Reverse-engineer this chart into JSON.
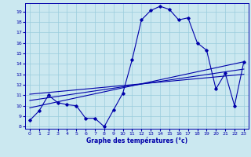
{
  "title": "",
  "xlabel": "Graphe des températures (°c)",
  "ylabel": "",
  "bg_color": "#cbe8f0",
  "line_color": "#0000aa",
  "grid_color": "#99ccdd",
  "xlim": [
    -0.5,
    23.5
  ],
  "ylim": [
    7.8,
    19.8
  ],
  "xticks": [
    0,
    1,
    2,
    3,
    4,
    5,
    6,
    7,
    8,
    9,
    10,
    11,
    12,
    13,
    14,
    15,
    16,
    17,
    18,
    19,
    20,
    21,
    22,
    23
  ],
  "yticks": [
    8,
    9,
    10,
    11,
    12,
    13,
    14,
    15,
    16,
    17,
    18,
    19
  ],
  "temps": [
    [
      0,
      8.6
    ],
    [
      1,
      9.5
    ],
    [
      2,
      11.0
    ],
    [
      3,
      10.3
    ],
    [
      4,
      10.1
    ],
    [
      5,
      10.0
    ],
    [
      6,
      8.8
    ],
    [
      7,
      8.8
    ],
    [
      8,
      8.0
    ],
    [
      9,
      9.6
    ],
    [
      10,
      11.2
    ],
    [
      11,
      14.4
    ],
    [
      12,
      18.2
    ],
    [
      13,
      19.1
    ],
    [
      14,
      19.5
    ],
    [
      15,
      19.2
    ],
    [
      16,
      18.2
    ],
    [
      17,
      18.4
    ],
    [
      18,
      16.0
    ],
    [
      19,
      15.3
    ],
    [
      20,
      11.6
    ],
    [
      21,
      13.1
    ],
    [
      22,
      10.0
    ],
    [
      23,
      14.2
    ]
  ],
  "trend_lines": [
    {
      "x": [
        0,
        23
      ],
      "y": [
        9.8,
        14.2
      ]
    },
    {
      "x": [
        0,
        23
      ],
      "y": [
        10.5,
        13.5
      ]
    },
    {
      "x": [
        0,
        23
      ],
      "y": [
        11.1,
        13.0
      ]
    }
  ],
  "xlabel_fontsize": 5.5,
  "tick_fontsize": 4.5
}
